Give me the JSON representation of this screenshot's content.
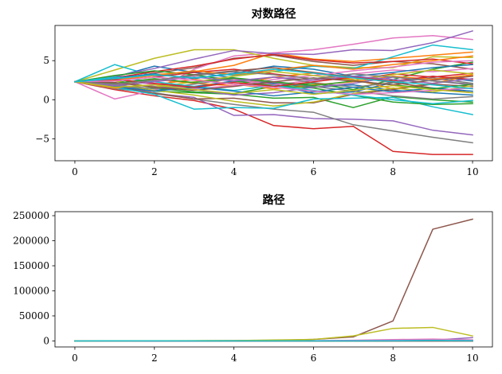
{
  "chart_data": [
    {
      "type": "line",
      "title": "对数路径",
      "xlabel": "",
      "ylabel": "",
      "xlim": [
        -0.5,
        10.5
      ],
      "ylim": [
        -7.8,
        9.5
      ],
      "xticks": [
        0,
        2,
        4,
        6,
        8,
        10
      ],
      "xtick_labels": [
        "0",
        "2",
        "4",
        "6",
        "8",
        "10"
      ],
      "yticks": [
        -5,
        0,
        5
      ],
      "ytick_labels": [
        "−5",
        "0",
        "5"
      ],
      "x": [
        0,
        1,
        2,
        3,
        4,
        5,
        6,
        7,
        8,
        9,
        10
      ],
      "grid": false,
      "series": [
        {
          "color": "#1f77b4",
          "values": [
            2.3,
            1.8,
            1.2,
            1.7,
            2.4,
            2.1,
            1.6,
            1.9,
            1.2,
            0.9,
            0.6
          ]
        },
        {
          "color": "#ff7f0e",
          "values": [
            2.3,
            2.7,
            3.2,
            3.6,
            4.4,
            6.0,
            5.2,
            4.9,
            5.3,
            5.7,
            6.1
          ]
        },
        {
          "color": "#2ca02c",
          "values": [
            2.3,
            1.6,
            1.1,
            0.9,
            0.7,
            0.2,
            0.3,
            -1.0,
            0.4,
            0.0,
            -0.3
          ]
        },
        {
          "color": "#d62728",
          "values": [
            2.3,
            1.3,
            0.5,
            -0.1,
            -1.2,
            -3.3,
            -3.7,
            -3.4,
            -6.6,
            -7.0,
            -7.0
          ]
        },
        {
          "color": "#9467bd",
          "values": [
            2.3,
            2.0,
            0.8,
            0.3,
            -2.0,
            -1.9,
            -2.4,
            -2.5,
            -2.7,
            -3.9,
            -4.5
          ]
        },
        {
          "color": "#8c564b",
          "values": [
            2.3,
            2.6,
            3.4,
            4.1,
            5.3,
            5.7,
            4.9,
            4.4,
            4.9,
            4.6,
            3.9
          ]
        },
        {
          "color": "#e377c2",
          "values": [
            2.3,
            0.1,
            1.2,
            3.9,
            5.6,
            6.0,
            6.4,
            7.1,
            7.9,
            8.2,
            7.7
          ]
        },
        {
          "color": "#7f7f7f",
          "values": [
            2.3,
            1.4,
            0.9,
            0.1,
            -0.6,
            -1.2,
            -1.6,
            -3.2,
            -4.0,
            -4.8,
            -5.5
          ]
        },
        {
          "color": "#bcbd22",
          "values": [
            2.3,
            3.8,
            5.3,
            6.4,
            6.4,
            5.3,
            4.4,
            4.1,
            4.1,
            5.5,
            5.4
          ]
        },
        {
          "color": "#17becf",
          "values": [
            2.3,
            4.5,
            3.0,
            3.7,
            3.1,
            3.6,
            4.3,
            4.0,
            5.5,
            7.0,
            6.4
          ]
        },
        {
          "color": "#1f77b4",
          "values": [
            2.3,
            2.9,
            4.3,
            3.5,
            2.8,
            2.0,
            0.8,
            1.0,
            2.2,
            3.0,
            2.4
          ]
        },
        {
          "color": "#ff7f0e",
          "values": [
            2.3,
            1.9,
            2.6,
            2.1,
            1.8,
            2.9,
            3.4,
            2.6,
            1.4,
            2.1,
            3.1
          ]
        },
        {
          "color": "#2ca02c",
          "values": [
            2.3,
            2.5,
            1.5,
            1.0,
            0.8,
            1.7,
            2.1,
            1.3,
            2.6,
            3.9,
            4.8
          ]
        },
        {
          "color": "#d62728",
          "values": [
            2.3,
            2.8,
            3.6,
            4.3,
            5.2,
            5.8,
            5.1,
            4.7,
            4.9,
            5.2,
            4.6
          ]
        },
        {
          "color": "#9467bd",
          "values": [
            2.3,
            3.0,
            4.0,
            5.2,
            6.3,
            5.9,
            5.8,
            6.4,
            6.3,
            7.3,
            8.8
          ]
        },
        {
          "color": "#8c564b",
          "values": [
            2.3,
            1.7,
            0.8,
            0.1,
            0.2,
            -0.4,
            -0.4,
            0.7,
            1.3,
            2.0,
            1.7
          ]
        },
        {
          "color": "#e377c2",
          "values": [
            2.3,
            1.9,
            2.4,
            3.1,
            2.6,
            1.9,
            2.5,
            3.3,
            3.8,
            3.6,
            4.0
          ]
        },
        {
          "color": "#7f7f7f",
          "values": [
            2.3,
            2.6,
            2.0,
            1.5,
            2.3,
            2.9,
            2.2,
            1.6,
            2.2,
            2.8,
            2.1
          ]
        },
        {
          "color": "#bcbd22",
          "values": [
            2.3,
            2.0,
            1.2,
            0.6,
            -0.2,
            -0.8,
            -0.3,
            0.8,
            1.5,
            1.0,
            1.8
          ]
        },
        {
          "color": "#17becf",
          "values": [
            2.3,
            1.6,
            0.7,
            -1.2,
            -1.0,
            -1.1,
            0.1,
            0.2,
            0.3,
            -0.9,
            -1.9
          ]
        },
        {
          "color": "#1f77b4",
          "values": [
            2.3,
            2.8,
            3.3,
            2.7,
            3.4,
            4.3,
            3.9,
            3.0,
            3.5,
            4.1,
            4.5
          ]
        },
        {
          "color": "#ff7f0e",
          "values": [
            2.3,
            1.5,
            1.9,
            2.6,
            2.0,
            1.4,
            1.9,
            2.3,
            3.0,
            2.6,
            3.2
          ]
        },
        {
          "color": "#2ca02c",
          "values": [
            2.3,
            3.1,
            3.7,
            3.2,
            2.4,
            1.8,
            1.5,
            0.6,
            -0.3,
            -0.6,
            -0.5
          ]
        },
        {
          "color": "#d62728",
          "values": [
            2.3,
            2.4,
            2.9,
            3.5,
            3.9,
            3.3,
            2.7,
            2.5,
            3.3,
            2.9,
            3.4
          ]
        },
        {
          "color": "#9467bd",
          "values": [
            2.3,
            2.2,
            1.7,
            1.3,
            0.6,
            0.9,
            1.6,
            2.1,
            2.9,
            2.4,
            1.9
          ]
        },
        {
          "color": "#8c564b",
          "values": [
            2.3,
            1.8,
            2.5,
            3.2,
            3.7,
            4.1,
            3.5,
            2.9,
            2.2,
            1.5,
            0.9
          ]
        },
        {
          "color": "#e377c2",
          "values": [
            2.3,
            2.7,
            1.9,
            1.4,
            1.8,
            2.6,
            3.1,
            3.7,
            4.2,
            4.8,
            5.0
          ]
        },
        {
          "color": "#7f7f7f",
          "values": [
            2.3,
            1.9,
            1.4,
            2.0,
            2.7,
            2.2,
            1.7,
            1.1,
            0.5,
            0.1,
            0.4
          ]
        },
        {
          "color": "#bcbd22",
          "values": [
            2.3,
            2.4,
            1.6,
            2.3,
            3.0,
            3.6,
            3.1,
            2.5,
            3.2,
            3.8,
            3.3
          ]
        },
        {
          "color": "#17becf",
          "values": [
            2.3,
            2.9,
            2.3,
            1.7,
            1.2,
            1.8,
            1.2,
            0.6,
            0.0,
            -0.5,
            -0.1
          ]
        },
        {
          "color": "#1f77b4",
          "values": [
            2.3,
            1.7,
            1.1,
            1.6,
            1.1,
            0.5,
            1.0,
            1.6,
            1.0,
            1.5,
            1.1
          ]
        },
        {
          "color": "#ff7f0e",
          "values": [
            2.3,
            2.5,
            3.1,
            3.7,
            3.2,
            3.8,
            4.4,
            3.9,
            4.5,
            5.0,
            5.6
          ]
        },
        {
          "color": "#2ca02c",
          "values": [
            2.3,
            2.1,
            2.7,
            2.2,
            2.8,
            2.3,
            1.8,
            2.4,
            1.9,
            1.4,
            2.0
          ]
        },
        {
          "color": "#d62728",
          "values": [
            2.3,
            2.6,
            2.1,
            1.6,
            2.2,
            1.7,
            2.3,
            2.9,
            2.4,
            3.0,
            2.6
          ]
        },
        {
          "color": "#9467bd",
          "values": [
            2.3,
            1.8,
            2.3,
            2.9,
            2.4,
            2.9,
            2.5,
            3.0,
            2.6,
            2.1,
            2.7
          ]
        },
        {
          "color": "#8c564b",
          "values": [
            2.3,
            2.2,
            1.6,
            1.2,
            1.7,
            2.3,
            2.8,
            2.4,
            1.9,
            2.5,
            3.0
          ]
        },
        {
          "color": "#e377c2",
          "values": [
            2.3,
            2.4,
            2.9,
            2.5,
            2.0,
            1.6,
            1.1,
            0.7,
            0.9,
            1.2,
            1.5
          ]
        },
        {
          "color": "#7f7f7f",
          "values": [
            2.3,
            2.0,
            2.5,
            3.1,
            3.6,
            3.2,
            2.7,
            3.3,
            2.9,
            2.4,
            2.0
          ]
        },
        {
          "color": "#bcbd22",
          "values": [
            2.3,
            1.6,
            1.9,
            1.3,
            0.8,
            1.3,
            0.7,
            1.2,
            1.8,
            1.3,
            0.9
          ]
        },
        {
          "color": "#17becf",
          "values": [
            2.3,
            2.7,
            3.2,
            2.8,
            3.3,
            3.9,
            3.4,
            2.8,
            2.3,
            1.9,
            1.4
          ]
        }
      ]
    },
    {
      "type": "line",
      "title": "路径",
      "xlabel": "",
      "ylabel": "",
      "xlim": [
        -0.5,
        10.5
      ],
      "ylim": [
        -12000,
        258000
      ],
      "xticks": [
        0,
        2,
        4,
        6,
        8,
        10
      ],
      "xtick_labels": [
        "0",
        "2",
        "4",
        "6",
        "8",
        "10"
      ],
      "yticks": [
        0,
        50000,
        100000,
        150000,
        200000,
        250000
      ],
      "ytick_labels": [
        "0",
        "50000",
        "100000",
        "150000",
        "200000",
        "250000"
      ],
      "x": [
        0,
        1,
        2,
        3,
        4,
        5,
        6,
        7,
        8,
        9,
        10
      ],
      "grid": false,
      "series": [
        {
          "color": "#1f77b4",
          "values": [
            10,
            6,
            3,
            5,
            11,
            8,
            5,
            7,
            3,
            2,
            2
          ]
        },
        {
          "color": "#ff7f0e",
          "values": [
            10,
            15,
            25,
            37,
            81,
            403,
            181,
            134,
            200,
            299,
            445
          ]
        },
        {
          "color": "#2ca02c",
          "values": [
            10,
            5,
            3,
            2,
            2,
            1,
            1,
            0,
            1,
            1,
            1
          ]
        },
        {
          "color": "#d62728",
          "values": [
            10,
            4,
            2,
            1,
            0,
            0,
            0,
            0,
            0,
            0,
            0
          ]
        },
        {
          "color": "#9467bd",
          "values": [
            10,
            13,
            55,
            181,
            545,
            365,
            330,
            602,
            545,
            1480,
            6634
          ]
        },
        {
          "color": "#8c564b",
          "values": [
            10,
            100,
            200,
            300,
            600,
            1200,
            3000,
            8000,
            40000,
            223000,
            243000
          ]
        },
        {
          "color": "#e377c2",
          "values": [
            10,
            1,
            3,
            49,
            270,
            403,
            602,
            1212,
            2697,
            3641,
            2208
          ]
        },
        {
          "color": "#7f7f7f",
          "values": [
            10,
            4,
            2,
            1,
            1,
            0,
            0,
            0,
            0,
            0,
            0
          ]
        },
        {
          "color": "#bcbd22",
          "values": [
            10,
            100,
            400,
            600,
            800,
            2000,
            3000,
            10000,
            25000,
            27000,
            10000
          ]
        },
        {
          "color": "#17becf",
          "values": [
            10,
            90,
            20,
            40,
            22,
            37,
            74,
            55,
            245,
            1097,
            602
          ]
        }
      ]
    }
  ]
}
